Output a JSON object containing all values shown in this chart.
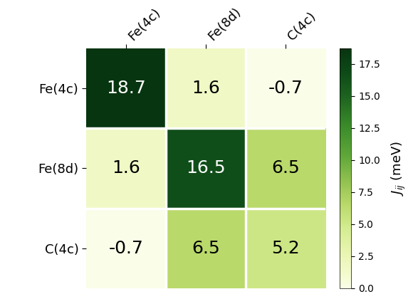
{
  "labels": [
    "Fe(4c)",
    "Fe(8d)",
    "C(4c)"
  ],
  "matrix": [
    [
      18.7,
      1.6,
      -0.7
    ],
    [
      1.6,
      16.5,
      6.5
    ],
    [
      -0.7,
      6.5,
      5.2
    ]
  ],
  "vmin": 0.0,
  "vmax": 18.7,
  "colorbar_ticks": [
    0.0,
    2.5,
    5.0,
    7.5,
    10.0,
    12.5,
    15.0,
    17.5
  ],
  "colorbar_label": "$J_{ij}$ (meV)",
  "cmap_colors": [
    [
      0.0,
      "#fafde8"
    ],
    [
      0.05,
      "#f5fbd0"
    ],
    [
      0.15,
      "#e8f5b0"
    ],
    [
      0.25,
      "#d4ec90"
    ],
    [
      0.35,
      "#b8d96a"
    ],
    [
      0.45,
      "#90c050"
    ],
    [
      0.55,
      "#60a83a"
    ],
    [
      0.68,
      "#3a8a2a"
    ],
    [
      0.8,
      "#1e6320"
    ],
    [
      0.9,
      "#0e4a18"
    ],
    [
      1.0,
      "#073510"
    ]
  ],
  "text_threshold": 10.0,
  "font_size_annot": 18,
  "font_size_labels": 13,
  "font_size_cbar": 13,
  "figsize": [
    5.8,
    4.2
  ]
}
